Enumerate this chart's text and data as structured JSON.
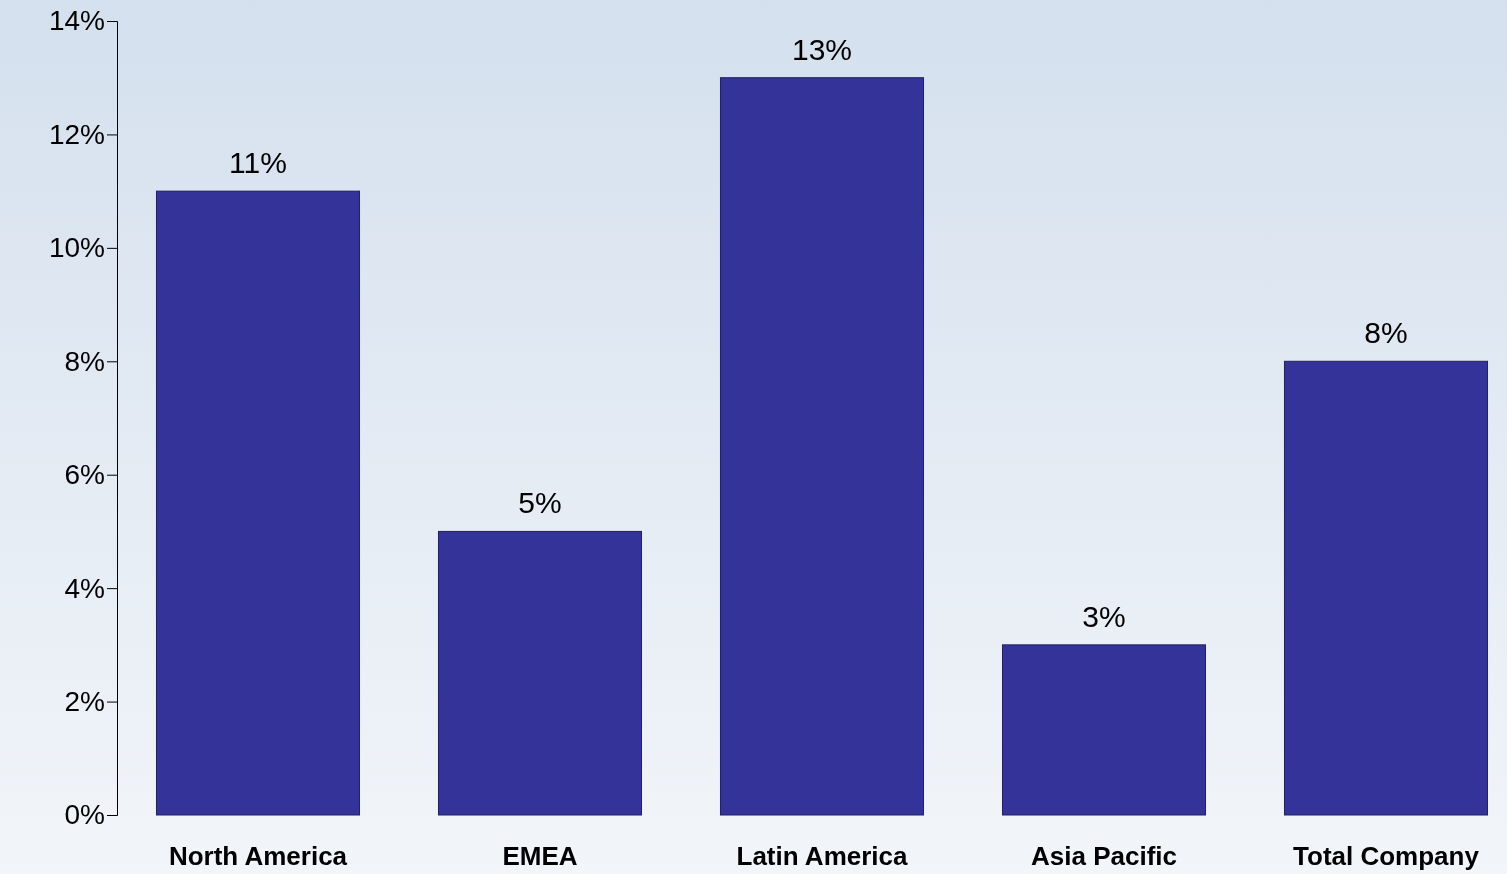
{
  "chart_data": {
    "type": "bar",
    "categories": [
      "North America",
      "EMEA",
      "Latin America",
      "Asia Pacific",
      "Total Company"
    ],
    "values": [
      11,
      5,
      13,
      3,
      8
    ],
    "value_labels": [
      "11%",
      "5%",
      "13%",
      "3%",
      "8%"
    ],
    "color": "#333399",
    "ylim": [
      0,
      14
    ],
    "yticks": [
      {
        "value": 0,
        "label": "0%"
      },
      {
        "value": 2,
        "label": "2%"
      },
      {
        "value": 4,
        "label": "4%"
      },
      {
        "value": 6,
        "label": "6%"
      },
      {
        "value": 8,
        "label": "8%"
      },
      {
        "value": 10,
        "label": "10%"
      },
      {
        "value": 12,
        "label": "12%"
      },
      {
        "value": 14,
        "label": "14%"
      }
    ],
    "grid": false
  }
}
